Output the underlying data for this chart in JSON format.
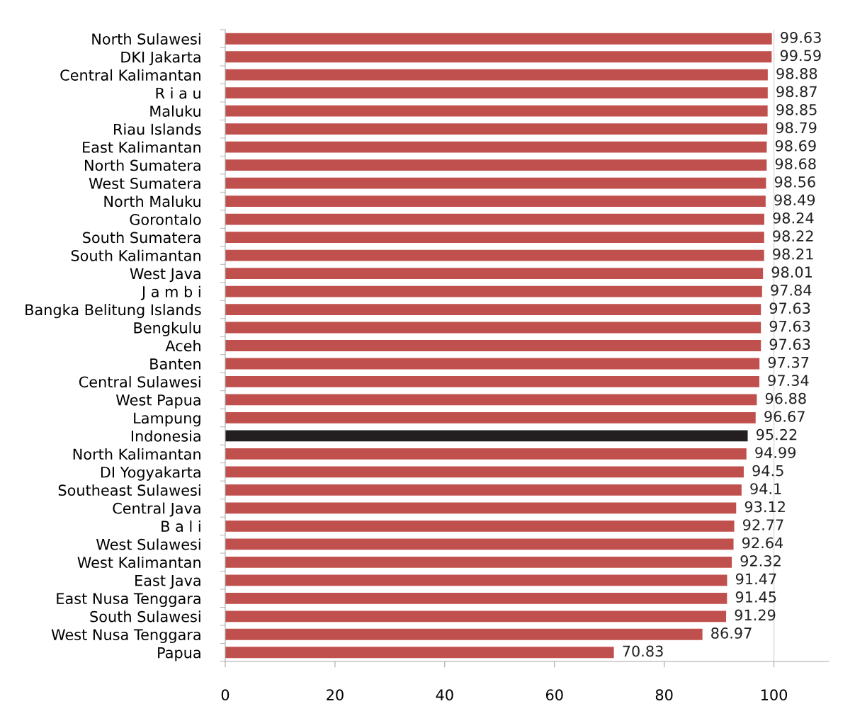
{
  "chart_data": {
    "type": "bar",
    "orientation": "horizontal",
    "categories": [
      "North Sulawesi",
      "DKI Jakarta",
      "Central Kalimantan",
      "R i a u",
      "Maluku",
      "Riau Islands",
      "East Kalimantan",
      "North Sumatera",
      "West Sumatera",
      "North Maluku",
      "Gorontalo",
      "South Sumatera",
      "South Kalimantan",
      "West Java",
      "J a m b i",
      "Bangka Belitung Islands",
      "Bengkulu",
      "Aceh",
      "Banten",
      "Central Sulawesi",
      "West Papua",
      "Lampung",
      "Indonesia",
      "North Kalimantan",
      "DI Yogyakarta",
      "Southeast Sulawesi",
      "Central Java",
      "B a l i",
      "West Sulawesi",
      "West Kalimantan",
      "East Java",
      "East Nusa Tenggara",
      "South Sulawesi",
      "West Nusa Tenggara",
      "Papua"
    ],
    "values": [
      99.63,
      99.59,
      98.88,
      98.87,
      98.85,
      98.79,
      98.69,
      98.68,
      98.56,
      98.49,
      98.24,
      98.22,
      98.21,
      98.01,
      97.84,
      97.63,
      97.63,
      97.63,
      97.37,
      97.34,
      96.88,
      96.67,
      95.22,
      94.99,
      94.5,
      94.1,
      93.12,
      92.77,
      92.64,
      92.32,
      91.47,
      91.45,
      91.29,
      86.97,
      70.83
    ],
    "colors": [
      "#c0504d",
      "#c0504d",
      "#c0504d",
      "#c0504d",
      "#c0504d",
      "#c0504d",
      "#c0504d",
      "#c0504d",
      "#c0504d",
      "#c0504d",
      "#c0504d",
      "#c0504d",
      "#c0504d",
      "#c0504d",
      "#c0504d",
      "#c0504d",
      "#c0504d",
      "#c0504d",
      "#c0504d",
      "#c0504d",
      "#c0504d",
      "#c0504d",
      "#231f20",
      "#c0504d",
      "#c0504d",
      "#c0504d",
      "#c0504d",
      "#c0504d",
      "#c0504d",
      "#c0504d",
      "#c0504d",
      "#c0504d",
      "#c0504d",
      "#c0504d",
      "#c0504d"
    ],
    "xlim": [
      0,
      110
    ],
    "xticks": [
      0,
      20,
      40,
      60,
      80,
      100
    ],
    "ref_lines": [
      {
        "axis": "x",
        "value": 100,
        "label": null,
        "color": "#d9d9d9"
      }
    ],
    "data_labels": true
  }
}
